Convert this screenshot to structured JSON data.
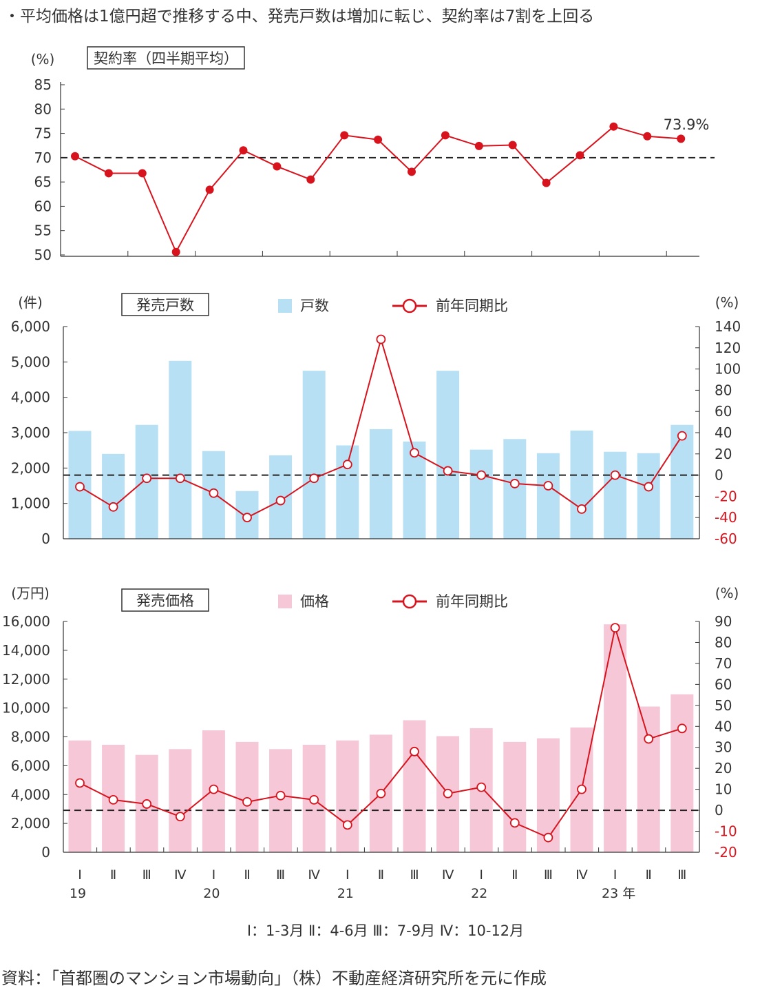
{
  "headline": "・平均価格は1億円超で推移する中、発売戸数は増加に転じ、契約率は7割を上回る",
  "legend_note": "Ⅰ：1-3月 Ⅱ：4-6月 Ⅲ：7-9月 Ⅳ：10-12月",
  "source": "資料：「首都圏のマンション市場動向」（株）不動産経済研究所を元に作成",
  "colors": {
    "red": "#d7141e",
    "blue_bar": "#b7e0f4",
    "pink_bar": "#f6c7d6",
    "axis": "#333333"
  },
  "x_axis": {
    "quarters": [
      "Ⅰ",
      "Ⅱ",
      "Ⅲ",
      "Ⅳ",
      "Ⅰ",
      "Ⅱ",
      "Ⅲ",
      "Ⅳ",
      "Ⅰ",
      "Ⅱ",
      "Ⅲ",
      "Ⅳ",
      "Ⅰ",
      "Ⅱ",
      "Ⅲ",
      "Ⅳ",
      "Ⅰ",
      "Ⅱ",
      "Ⅲ"
    ],
    "years": [
      {
        "label": "19",
        "index": 0
      },
      {
        "label": "20",
        "index": 4
      },
      {
        "label": "21",
        "index": 8
      },
      {
        "label": "22",
        "index": 12
      },
      {
        "label": "23 年",
        "index": 16
      }
    ]
  },
  "chart_data": [
    {
      "type": "line",
      "title": "契約率（四半期平均）",
      "unit_label": "(%)",
      "ylim": [
        50,
        85
      ],
      "yticks": [
        50,
        55,
        60,
        65,
        70,
        75,
        80,
        85
      ],
      "reference_line": 70,
      "last_label": "73.9%",
      "series": [
        {
          "values": [
            70.3,
            66.8,
            66.8,
            50.6,
            63.4,
            71.5,
            68.2,
            65.5,
            74.6,
            73.7,
            67.1,
            74.6,
            72.4,
            72.6,
            64.8,
            70.5,
            76.4,
            74.4,
            73.9
          ]
        }
      ]
    },
    {
      "type": "bar",
      "title": "発売戸数",
      "unit_label_left": "(件)",
      "unit_label_right": "(%)",
      "ylim": [
        0,
        6000
      ],
      "yticks": [
        0,
        1000,
        2000,
        3000,
        4000,
        5000,
        6000
      ],
      "ytick_labels": [
        "0",
        "1,000",
        "2,000",
        "3,000",
        "4,000",
        "5,000",
        "6,000"
      ],
      "y2lim": [
        -60,
        140
      ],
      "y2ticks": [
        -60,
        -40,
        -20,
        0,
        20,
        40,
        60,
        80,
        100,
        120,
        140
      ],
      "y2tick_labels": [
        "-60",
        "-40",
        "-20",
        "0",
        "20",
        "40",
        "60",
        "80",
        "100",
        "120",
        "140"
      ],
      "legend_bar": "戸数",
      "legend_line": "前年同期比",
      "series": [
        {
          "name": "戸数",
          "type": "bar",
          "values": [
            3050,
            2400,
            3220,
            5030,
            2480,
            1350,
            2360,
            4750,
            2640,
            3100,
            2750,
            4750,
            2520,
            2820,
            2420,
            3060,
            2460,
            2420,
            3220
          ]
        },
        {
          "name": "前年同期比",
          "type": "line",
          "axis": "right",
          "values": [
            -11,
            -30,
            -3,
            -3,
            -17,
            -40,
            -24,
            -3,
            10,
            128,
            21,
            4,
            0,
            -8,
            -10,
            -32,
            0,
            -11,
            37
          ]
        }
      ]
    },
    {
      "type": "bar",
      "title": "発売価格",
      "unit_label_left": "(万円)",
      "unit_label_right": "(%)",
      "ylim": [
        0,
        16000
      ],
      "yticks": [
        0,
        2000,
        4000,
        6000,
        8000,
        10000,
        12000,
        14000,
        16000
      ],
      "ytick_labels": [
        "0",
        "2,000",
        "4,000",
        "6,000",
        "8,000",
        "10,000",
        "12,000",
        "14,000",
        "16,000"
      ],
      "y2lim": [
        -20,
        90
      ],
      "y2ticks": [
        -20,
        -10,
        0,
        10,
        20,
        30,
        40,
        50,
        60,
        70,
        80,
        90
      ],
      "y2tick_labels": [
        "-20",
        "-10",
        "0",
        "10",
        "20",
        "30",
        "40",
        "50",
        "60",
        "70",
        "80",
        "90"
      ],
      "legend_bar": "価格",
      "legend_line": "前年同期比",
      "series": [
        {
          "name": "価格",
          "type": "bar",
          "values": [
            7750,
            7450,
            6750,
            7150,
            8450,
            7650,
            7150,
            7450,
            7750,
            8150,
            9150,
            8050,
            8600,
            7650,
            7900,
            8650,
            15800,
            10100,
            10950
          ]
        },
        {
          "name": "前年同期比",
          "type": "line",
          "axis": "right",
          "values": [
            13,
            5,
            3,
            -3,
            10,
            4,
            7,
            5,
            -7,
            8,
            28,
            8,
            11,
            -6,
            -13,
            10,
            87,
            34,
            39
          ]
        }
      ]
    }
  ]
}
